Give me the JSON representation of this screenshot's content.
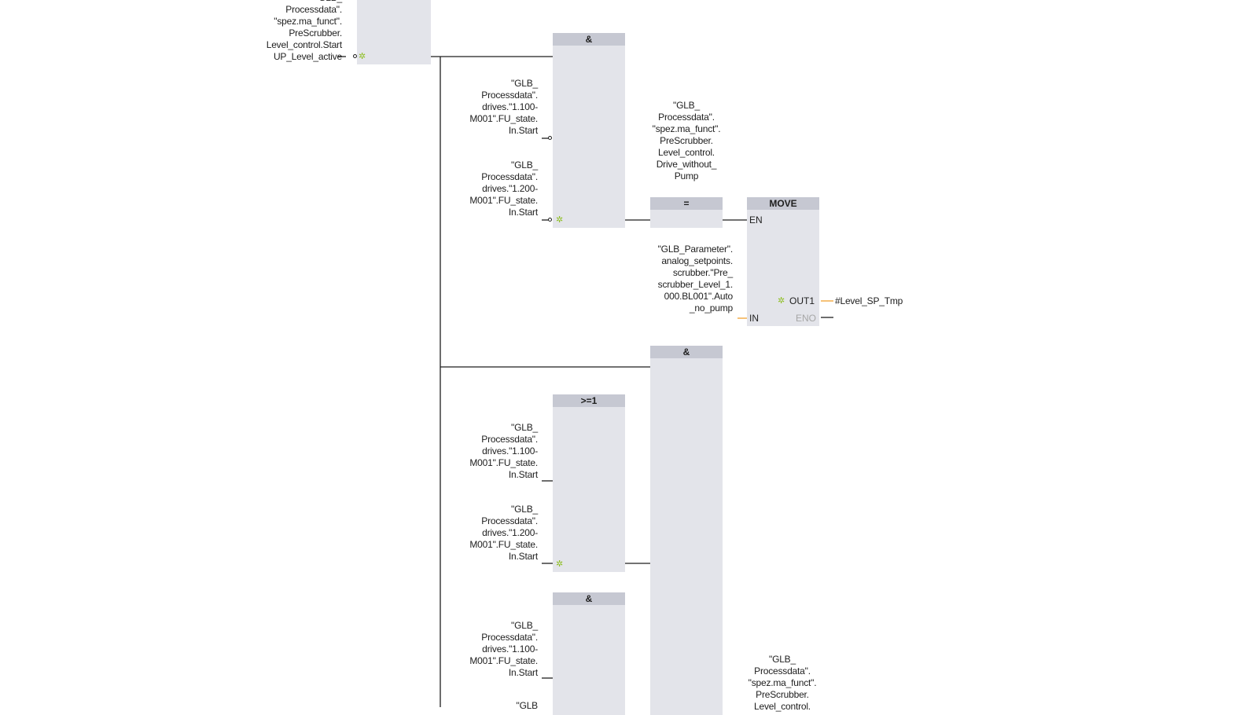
{
  "colors": {
    "block_body": "#e3e4ea",
    "block_header": "#c6c8d2",
    "wire": "#1e1e1e",
    "analog_wire": "#f0a030",
    "marker": "#8fbf24",
    "disabled_pin": "#a6a6a6"
  },
  "operands": {
    "startup_active": "\"GLB_\nProcessdata\".\n\"spez.ma_funct\".\nPreScrubber.\nLevel_control.Start\nUP_Level_active",
    "fu_1100_a": "\"GLB_\nProcessdata\".\ndrives.\"1.100-\nM001\".FU_state.\nIn.Start",
    "fu_1200_a": "\"GLB_\nProcessdata\".\ndrives.\"1.200-\nM001\".FU_state.\nIn.Start",
    "drive_without_pump": "\"GLB_\nProcessdata\".\n\"spez.ma_funct\".\nPreScrubber.\nLevel_control.\nDrive_without_\nPump",
    "auto_no_pump": "\"GLB_Parameter\".\nanalog_setpoints.\nscrubber.\"Pre_\nscrubber_Level_1.\n000.BL001\".Auto\n_no_pump",
    "level_sp_tmp": "#Level_SP_Tmp",
    "fu_1100_b": "\"GLB_\nProcessdata\".\ndrives.\"1.100-\nM001\".FU_state.\nIn.Start",
    "fu_1200_b": "\"GLB_\nProcessdata\".\ndrives.\"1.200-\nM001\".FU_state.\nIn.Start",
    "fu_1100_c": "\"GLB_\nProcessdata\".\ndrives.\"1.100-\nM001\".FU_state.\nIn.Start",
    "glb_partial": "\"GLB",
    "level_control_bottom": "\"GLB_\nProcessdata\".\n\"spez.ma_funct\".\nPreScrubber.\nLevel_control."
  },
  "blocks": {
    "and_1": "&",
    "assign_1": "=",
    "move": "MOVE",
    "and_2": "&",
    "or_1": ">=1",
    "and_3": "&"
  },
  "pins": {
    "en": "EN",
    "in": "IN",
    "out1": "OUT1",
    "eno": "ENO"
  }
}
